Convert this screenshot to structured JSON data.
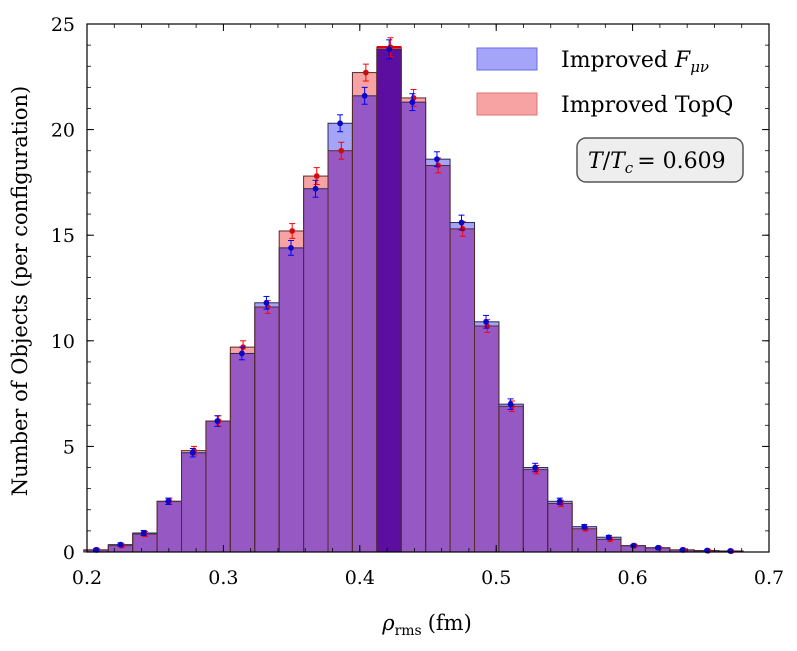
{
  "chart_data": {
    "type": "bar",
    "subtype": "overlapping-histogram",
    "xlabel": "ρrms (fm)",
    "xlabel_main": "ρ",
    "xlabel_sub": "rms",
    "xlabel_unit": "(fm)",
    "ylabel": "Number of Objects (per configuration)",
    "xlim": [
      0.2,
      0.7
    ],
    "ylim": [
      0,
      25
    ],
    "x_ticks": [
      "0.2",
      "0.3",
      "0.4",
      "0.5",
      "0.6",
      "0.7"
    ],
    "x_tick_values": [
      0.2,
      0.3,
      0.4,
      0.5,
      0.6,
      0.7
    ],
    "y_ticks": [
      "0",
      "5",
      "10",
      "15",
      "20",
      "25"
    ],
    "y_tick_values": [
      0,
      5,
      10,
      15,
      20,
      25
    ],
    "bin_width": 0.0179,
    "bin_start": 0.1977,
    "legend": {
      "position": "top-right",
      "entries": [
        {
          "label": "Improved Fμν",
          "label_main": "Improved ",
          "label_math": "F",
          "label_sub": "μν",
          "series": 0
        },
        {
          "label": "Improved TopQ",
          "series": 1
        }
      ]
    },
    "annotation": {
      "text": "T/Tc = 0.609",
      "lhs1": "T",
      "slash": "/",
      "lhs2": "T",
      "lhs2_sub": "c",
      "rhs": "= 0.609",
      "position": "upper-right"
    },
    "bin_centers": [
      0.207,
      0.225,
      0.242,
      0.26,
      0.278,
      0.296,
      0.314,
      0.332,
      0.35,
      0.368,
      0.386,
      0.404,
      0.422,
      0.439,
      0.457,
      0.475,
      0.493,
      0.511,
      0.529,
      0.547,
      0.565,
      0.583,
      0.601,
      0.619,
      0.637,
      0.655,
      0.672
    ],
    "series": [
      {
        "name": "Improved Fμν",
        "color": "#0000ff",
        "fill_color": "#6f6ff5",
        "marker_color": "#0a0ab8",
        "values": [
          0.1,
          0.35,
          0.9,
          2.4,
          4.7,
          6.2,
          9.4,
          11.8,
          14.4,
          17.2,
          20.3,
          21.6,
          23.8,
          21.3,
          18.6,
          15.6,
          10.9,
          7.0,
          4.0,
          2.4,
          1.2,
          0.7,
          0.3,
          0.2,
          0.1,
          0.07,
          0.05
        ],
        "errors": [
          0.05,
          0.08,
          0.12,
          0.15,
          0.2,
          0.25,
          0.3,
          0.3,
          0.35,
          0.4,
          0.4,
          0.4,
          0.45,
          0.4,
          0.35,
          0.35,
          0.3,
          0.25,
          0.2,
          0.15,
          0.1,
          0.08,
          0.05,
          0.04,
          0.03,
          0.02,
          0.02
        ]
      },
      {
        "name": "Improved TopQ",
        "color": "#ff0000",
        "fill_color": "#f08080",
        "marker_color": "#c01010",
        "values": [
          0.1,
          0.3,
          0.85,
          2.4,
          4.8,
          6.2,
          9.7,
          11.6,
          15.2,
          17.8,
          19.0,
          22.7,
          23.9,
          21.5,
          18.3,
          15.3,
          10.7,
          6.9,
          3.9,
          2.3,
          1.1,
          0.6,
          0.3,
          0.2,
          0.1,
          0.06,
          0.04
        ],
        "errors": [
          0.05,
          0.08,
          0.12,
          0.15,
          0.2,
          0.25,
          0.3,
          0.3,
          0.35,
          0.4,
          0.4,
          0.4,
          0.45,
          0.4,
          0.35,
          0.35,
          0.3,
          0.25,
          0.2,
          0.15,
          0.1,
          0.08,
          0.05,
          0.04,
          0.03,
          0.02,
          0.02
        ]
      }
    ],
    "overlap_color": "#9659c4",
    "highlight_bin_index": 12,
    "highlight_color": "#5c0ea0"
  }
}
